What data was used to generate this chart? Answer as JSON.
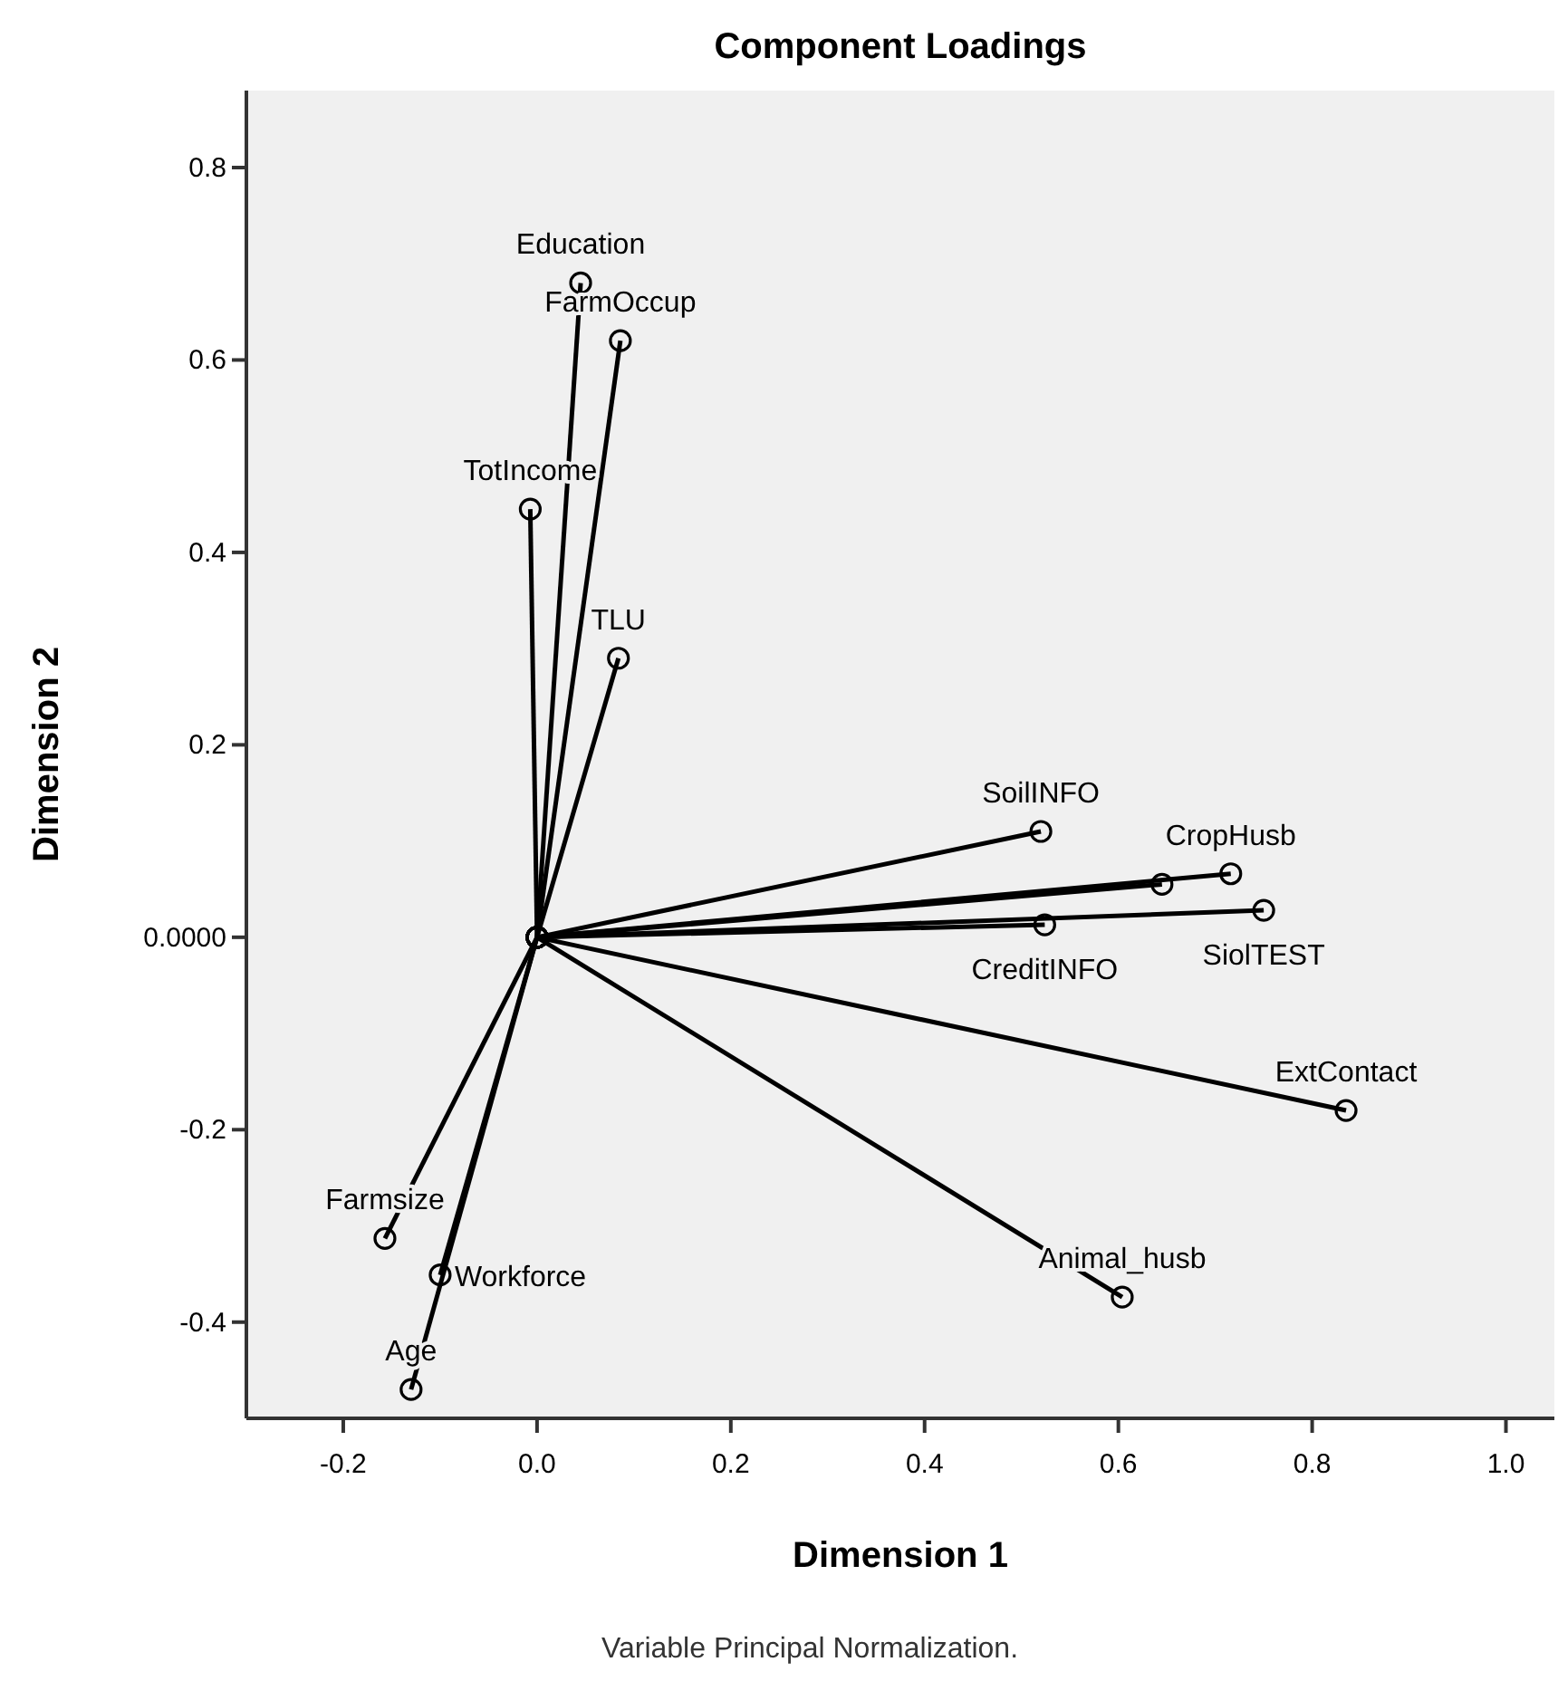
{
  "chart_data": {
    "type": "line",
    "title": "Component Loadings",
    "xlabel": "Dimension 1",
    "ylabel": "Dimension 2",
    "annotations": [
      "Variable Principal Normalization."
    ],
    "marker": "circle",
    "line_style": "solid",
    "grid": false,
    "xlim": [
      -0.3,
      1.05
    ],
    "xticks": [
      -0.2,
      {
        "value": 0,
        "label": "0.0"
      },
      0.2,
      0.4,
      0.6,
      0.8,
      {
        "value": 1,
        "label": "1.0"
      }
    ],
    "ylim": [
      -0.5,
      0.88
    ],
    "yticks": [
      -0.4,
      -0.2,
      {
        "value": 0,
        "label": "0.0000"
      },
      0.2,
      0.4,
      0.6,
      0.8
    ],
    "series": [
      {
        "name": "Education",
        "color": "#000000",
        "x": [
          0,
          0.045
        ],
        "values": [
          0,
          0.68
        ]
      },
      {
        "name": "FarmOccup",
        "color": "#000000",
        "x": [
          0,
          0.086
        ],
        "values": [
          0,
          0.62
        ]
      },
      {
        "name": "TotIncome",
        "color": "#000000",
        "x": [
          0,
          -0.007
        ],
        "values": [
          0,
          0.445
        ]
      },
      {
        "name": "TLU",
        "color": "#000000",
        "x": [
          0,
          0.084
        ],
        "values": [
          0,
          0.29
        ]
      },
      {
        "name": "SoilINFO",
        "color": "#000000",
        "x": [
          0,
          0.52
        ],
        "values": [
          0,
          0.11
        ]
      },
      {
        "name": "CropHusb",
        "color": "#000000",
        "x": [
          0,
          0.716
        ],
        "values": [
          0,
          0.066
        ]
      },
      {
        "name": "CreditINFO",
        "color": "#000000",
        "x": [
          0,
          0.524
        ],
        "values": [
          0,
          0.013
        ]
      },
      {
        "color": "#000000",
        "x": [
          0,
          0.645
        ],
        "values": [
          0,
          0.055
        ]
      },
      {
        "name": "SiolTEST",
        "color": "#000000",
        "x": [
          0,
          0.75
        ],
        "values": [
          0,
          0.028
        ]
      },
      {
        "name": "ExtContact",
        "color": "#000000",
        "x": [
          0,
          0.835
        ],
        "values": [
          0,
          -0.18
        ]
      },
      {
        "name": "Animal_husb",
        "color": "#000000",
        "x": [
          0,
          0.604
        ],
        "values": [
          0,
          -0.374
        ]
      },
      {
        "name": "Farmsize",
        "color": "#000000",
        "x": [
          0,
          -0.157
        ],
        "values": [
          0,
          -0.313
        ]
      },
      {
        "name": "Workforce",
        "color": "#000000",
        "x": [
          0,
          -0.1
        ],
        "values": [
          0,
          -0.351
        ]
      },
      {
        "name": "Age",
        "color": "#000000",
        "x": [
          0,
          -0.13
        ],
        "values": [
          0,
          -0.47
        ]
      }
    ]
  }
}
